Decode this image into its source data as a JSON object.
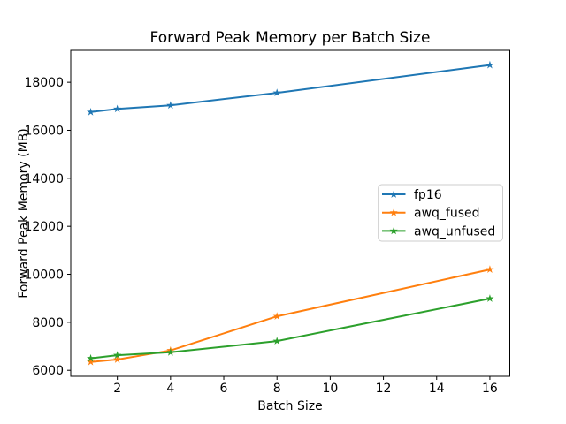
{
  "chart_data": {
    "type": "line",
    "title": "Forward Peak Memory per Batch Size",
    "xlabel": "Batch Size",
    "ylabel": "Forward Peak Memory (MB)",
    "x": [
      1,
      2,
      4,
      8,
      16
    ],
    "series": [
      {
        "name": "fp16",
        "color": "#1f77b4",
        "marker": "star",
        "values": [
          16760,
          16890,
          17040,
          17560,
          18720
        ]
      },
      {
        "name": "awq_fused",
        "color": "#ff7f0e",
        "marker": "star",
        "values": [
          6350,
          6450,
          6830,
          8250,
          10200
        ]
      },
      {
        "name": "awq_unfused",
        "color": "#2ca02c",
        "marker": "star",
        "values": [
          6500,
          6630,
          6750,
          7220,
          8990
        ]
      }
    ],
    "xticks": [
      2,
      4,
      6,
      8,
      10,
      12,
      14,
      16
    ],
    "yticks": [
      6000,
      8000,
      10000,
      12000,
      14000,
      16000,
      18000
    ],
    "xlim": [
      0.25,
      16.75
    ],
    "ylim": [
      5750,
      19330
    ],
    "grid": false,
    "legend": {
      "position": "center right",
      "entries": [
        "fp16",
        "awq_fused",
        "awq_unfused"
      ]
    },
    "background": "#ffffff",
    "spine_color": "#000000",
    "legend_border_color": "#cccccc"
  }
}
